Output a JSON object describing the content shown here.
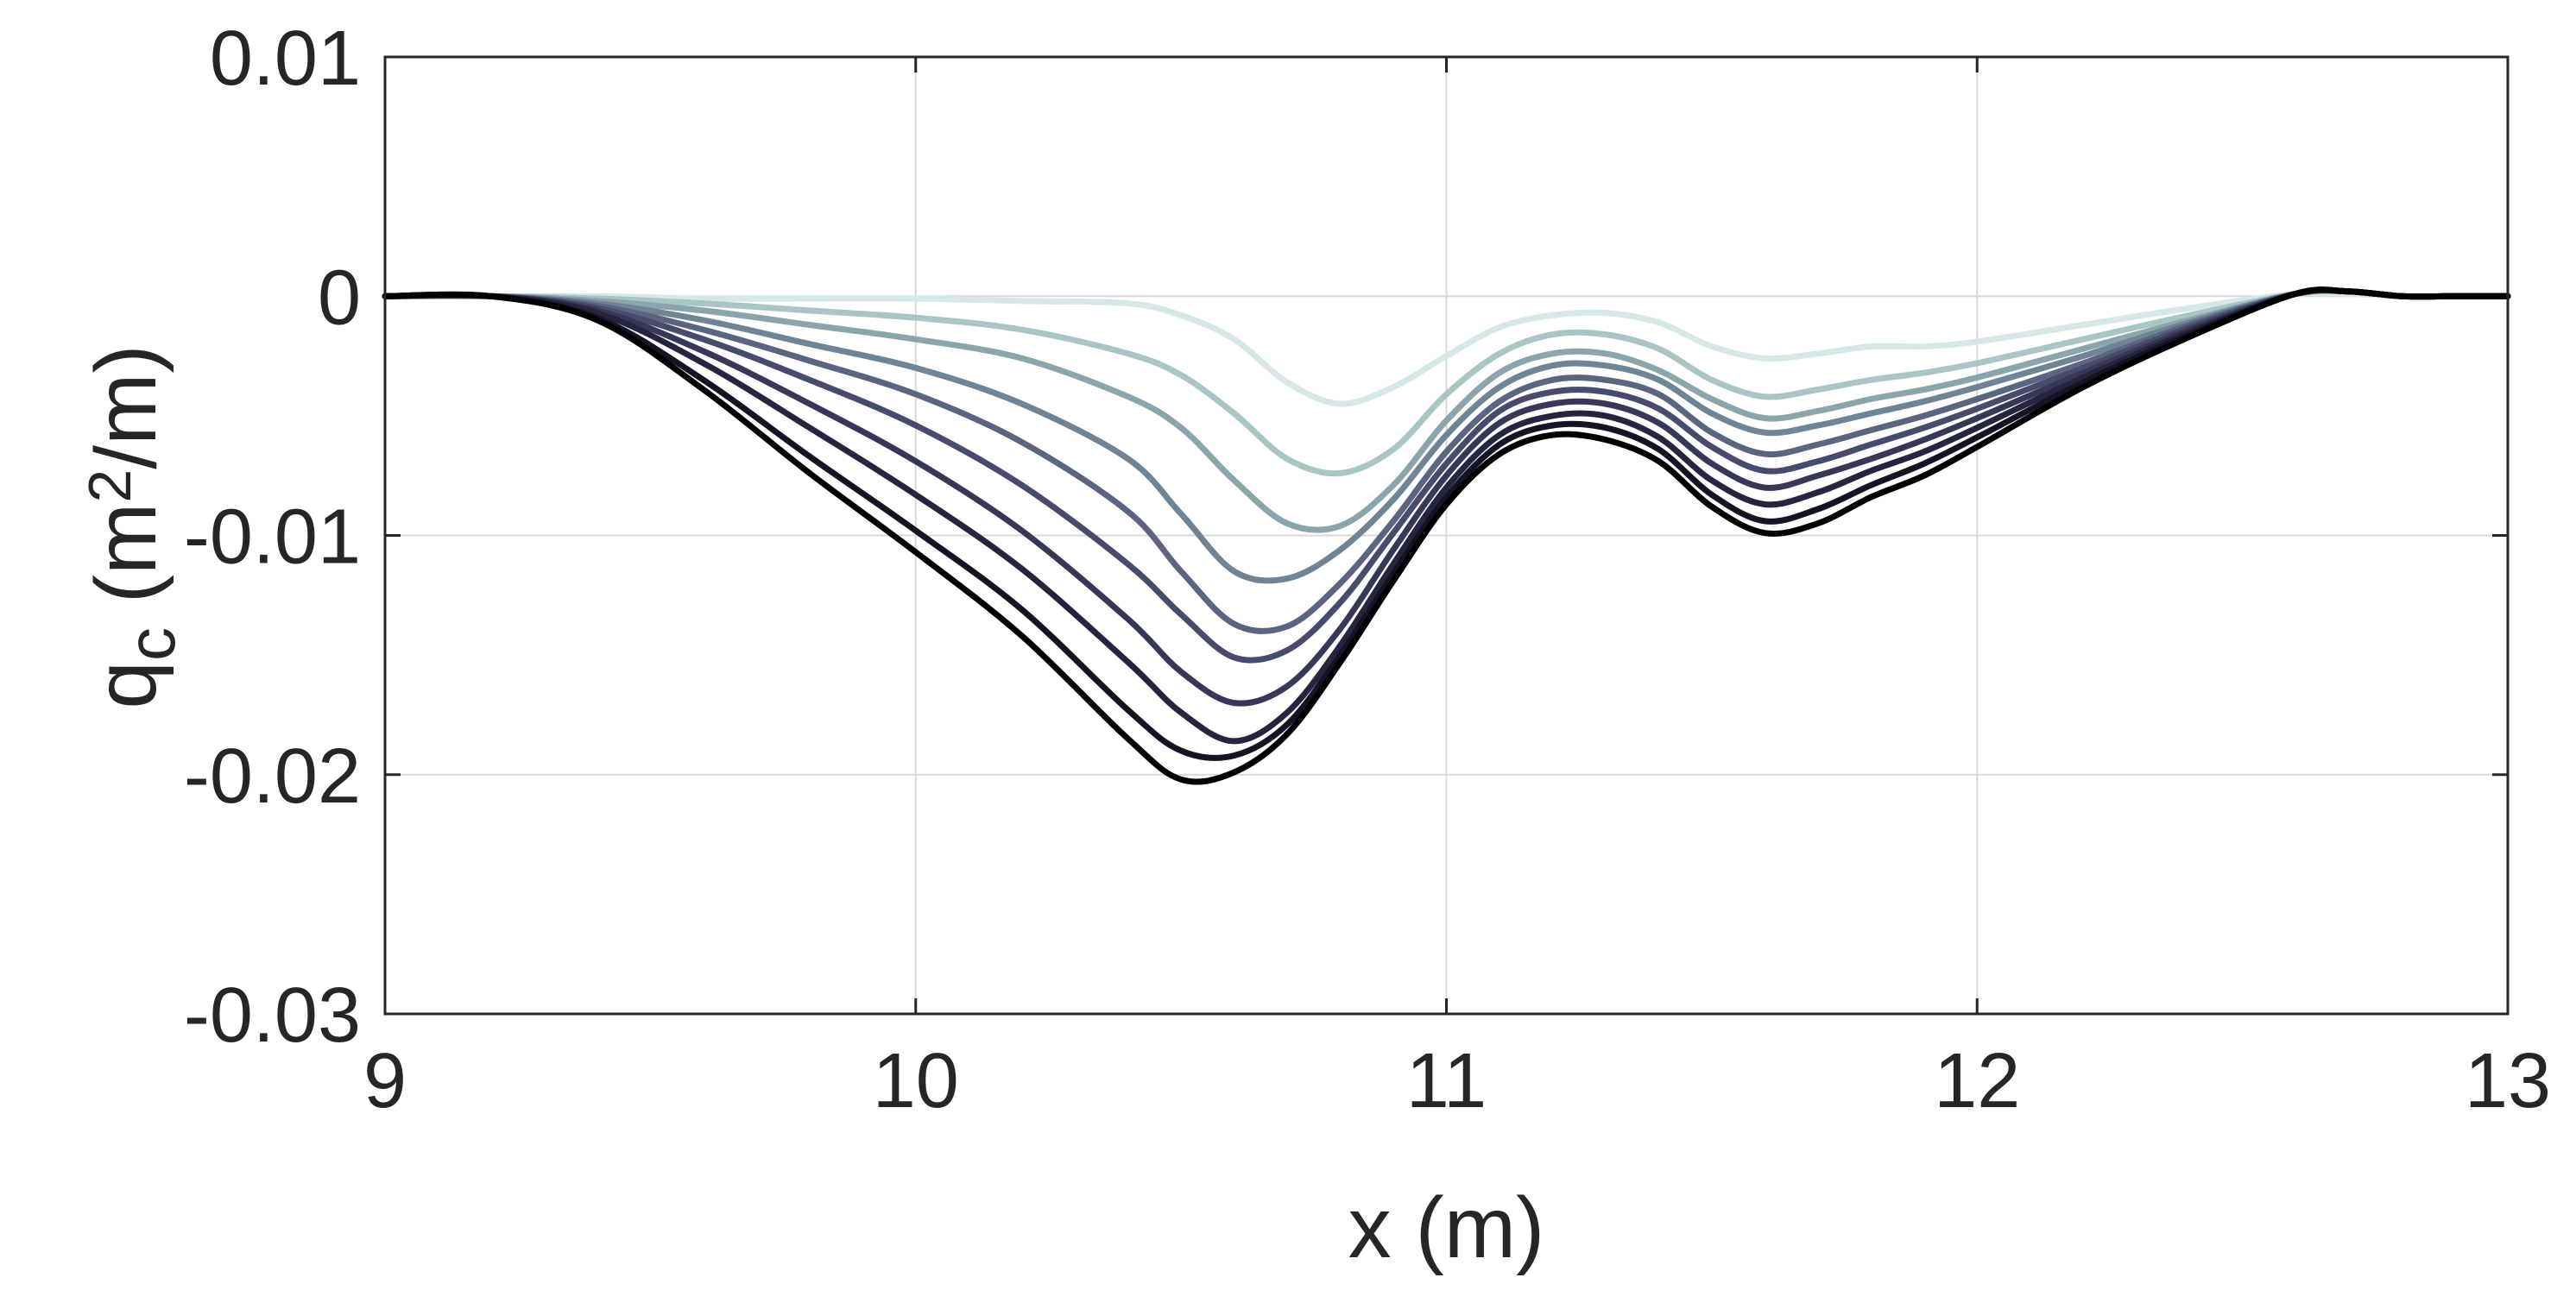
{
  "chart_data": {
    "type": "line",
    "xlabel": "x (m)",
    "ylabel_main": "q",
    "ylabel_sub": "c",
    "ylabel_unit_pre": " (m",
    "ylabel_unit_sup": "2",
    "ylabel_unit_post": "/m)",
    "xlim": [
      9,
      13
    ],
    "ylim": [
      -0.03,
      0.01
    ],
    "xticks": [
      9,
      10,
      11,
      12,
      13
    ],
    "xtick_labels": [
      "9",
      "10",
      "11",
      "12",
      "13"
    ],
    "yticks": [
      0.01,
      0,
      -0.01,
      -0.02,
      -0.03
    ],
    "ytick_labels": [
      "0.01",
      "0",
      "-0.01",
      "-0.02",
      "-0.03"
    ],
    "grid": true,
    "x": [
      9.0,
      9.2,
      9.4,
      9.6,
      9.8,
      10.0,
      10.2,
      10.4,
      10.5,
      10.6,
      10.7,
      10.8,
      10.9,
      11.0,
      11.1,
      11.2,
      11.3,
      11.4,
      11.5,
      11.6,
      11.7,
      11.8,
      11.9,
      12.0,
      12.2,
      12.4,
      12.6,
      12.7,
      12.8,
      12.9,
      13.0
    ],
    "series": [
      {
        "color": "#d6e8e6",
        "values": [
          0,
          0,
          0,
          -0.0001,
          -0.0001,
          -0.0001,
          -0.0002,
          -0.0003,
          -0.0008,
          -0.0018,
          -0.0036,
          -0.0045,
          -0.0038,
          -0.0025,
          -0.0013,
          -0.0008,
          -0.0007,
          -0.0011,
          -0.0021,
          -0.0026,
          -0.0024,
          -0.0021,
          -0.0021,
          -0.0019,
          -0.0012,
          -0.0005,
          0.0001,
          0.0001,
          0,
          0,
          0
        ]
      },
      {
        "color": "#a9c6c5",
        "values": [
          0,
          0,
          -0.0001,
          -0.0003,
          -0.0006,
          -0.0009,
          -0.0014,
          -0.0024,
          -0.0033,
          -0.0049,
          -0.0068,
          -0.0074,
          -0.0064,
          -0.0041,
          -0.0024,
          -0.0016,
          -0.0016,
          -0.0022,
          -0.0035,
          -0.0042,
          -0.0039,
          -0.0035,
          -0.0032,
          -0.0028,
          -0.0018,
          -0.0008,
          0.0001,
          0.0002,
          0,
          0,
          0
        ]
      },
      {
        "color": "#8aa5ac",
        "values": [
          0,
          0,
          -0.0002,
          -0.0006,
          -0.0012,
          -0.0018,
          -0.0026,
          -0.0042,
          -0.0055,
          -0.0077,
          -0.0095,
          -0.0096,
          -0.0079,
          -0.0052,
          -0.0032,
          -0.0024,
          -0.0024,
          -0.0031,
          -0.0043,
          -0.0051,
          -0.0048,
          -0.0043,
          -0.0039,
          -0.0034,
          -0.0022,
          -0.001,
          0.0001,
          0.0002,
          0,
          0,
          0
        ]
      },
      {
        "color": "#6f8595",
        "values": [
          0,
          0,
          -0.0003,
          -0.001,
          -0.002,
          -0.003,
          -0.0045,
          -0.0068,
          -0.0091,
          -0.0115,
          -0.0118,
          -0.0106,
          -0.0085,
          -0.0058,
          -0.0038,
          -0.0029,
          -0.0029,
          -0.0035,
          -0.0049,
          -0.0057,
          -0.0054,
          -0.0049,
          -0.0044,
          -0.0038,
          -0.0025,
          -0.0011,
          0.0001,
          0.0002,
          0,
          0,
          0
        ]
      },
      {
        "color": "#5a6680",
        "values": [
          0,
          0,
          -0.0004,
          -0.0014,
          -0.0027,
          -0.0041,
          -0.0061,
          -0.009,
          -0.0115,
          -0.0137,
          -0.0138,
          -0.012,
          -0.0094,
          -0.0065,
          -0.0044,
          -0.0035,
          -0.0035,
          -0.0041,
          -0.0057,
          -0.0066,
          -0.0062,
          -0.0056,
          -0.005,
          -0.0043,
          -0.0028,
          -0.0012,
          0.0001,
          0.0002,
          0,
          0,
          0
        ]
      },
      {
        "color": "#474c6c",
        "values": [
          0,
          0,
          -0.0005,
          -0.0018,
          -0.0035,
          -0.0054,
          -0.0079,
          -0.0112,
          -0.0133,
          -0.0151,
          -0.0148,
          -0.0128,
          -0.0099,
          -0.007,
          -0.0048,
          -0.004,
          -0.004,
          -0.0047,
          -0.0063,
          -0.0073,
          -0.0069,
          -0.0062,
          -0.0055,
          -0.0047,
          -0.003,
          -0.0013,
          0.0001,
          0.0002,
          0,
          0,
          0
        ]
      },
      {
        "color": "#373857",
        "values": [
          0,
          0,
          -0.0006,
          -0.0023,
          -0.0045,
          -0.0069,
          -0.0098,
          -0.0135,
          -0.0157,
          -0.017,
          -0.0163,
          -0.0139,
          -0.0106,
          -0.0075,
          -0.0053,
          -0.0045,
          -0.0045,
          -0.0053,
          -0.007,
          -0.008,
          -0.0075,
          -0.0068,
          -0.006,
          -0.0051,
          -0.0032,
          -0.0014,
          0.0001,
          0.0002,
          0,
          0,
          0
        ]
      },
      {
        "color": "#262540",
        "values": [
          0,
          0,
          -0.0007,
          -0.0028,
          -0.0055,
          -0.0083,
          -0.0114,
          -0.0153,
          -0.0174,
          -0.0186,
          -0.0174,
          -0.0146,
          -0.0112,
          -0.008,
          -0.0058,
          -0.005,
          -0.005,
          -0.0059,
          -0.0077,
          -0.0087,
          -0.0082,
          -0.0073,
          -0.0065,
          -0.0055,
          -0.0034,
          -0.0015,
          0.0001,
          0.0002,
          0,
          0,
          0
        ]
      },
      {
        "color": "#141424",
        "values": [
          0,
          0,
          -0.0009,
          -0.0035,
          -0.0067,
          -0.0098,
          -0.0131,
          -0.0173,
          -0.019,
          -0.0192,
          -0.0179,
          -0.015,
          -0.0116,
          -0.0084,
          -0.0062,
          -0.0054,
          -0.0055,
          -0.0064,
          -0.0083,
          -0.0094,
          -0.0089,
          -0.0079,
          -0.007,
          -0.0059,
          -0.0036,
          -0.0016,
          0.0001,
          0.0002,
          0,
          0,
          0
        ]
      },
      {
        "color": "#000000",
        "values": [
          0,
          0,
          -0.001,
          -0.0039,
          -0.0074,
          -0.0107,
          -0.0142,
          -0.0185,
          -0.0202,
          -0.0199,
          -0.0183,
          -0.0153,
          -0.0119,
          -0.0087,
          -0.0066,
          -0.0058,
          -0.006,
          -0.0069,
          -0.0088,
          -0.0099,
          -0.0095,
          -0.0084,
          -0.0075,
          -0.0063,
          -0.0038,
          -0.0017,
          0.0001,
          0.0002,
          0,
          0,
          0
        ]
      }
    ]
  }
}
